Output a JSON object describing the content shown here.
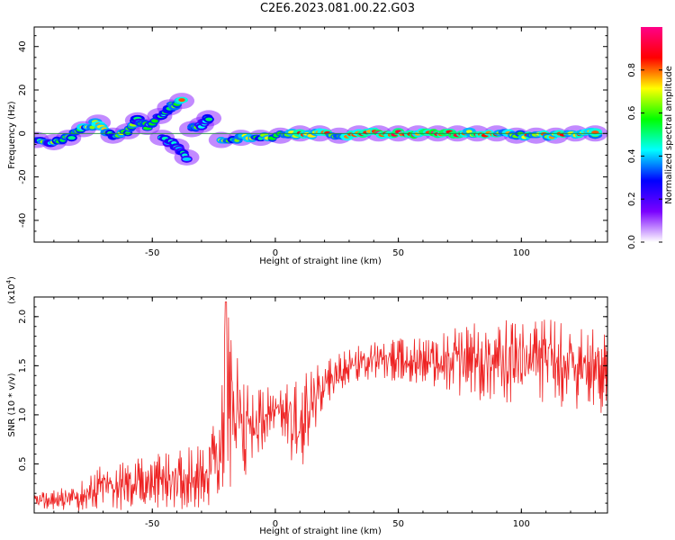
{
  "title": "C2E6.2023.081.00.22.G03",
  "chart_data": [
    {
      "type": "heatmap",
      "xlabel": "Height of straight line (km)",
      "ylabel": "Frequency (Hz)",
      "xlim": [
        -98,
        135
      ],
      "ylim": [
        -50,
        49
      ],
      "xticks": [
        -50,
        0,
        50,
        100
      ],
      "yticks": [
        -40,
        -20,
        0,
        20,
        40
      ],
      "colorbar": {
        "label": "Normalized spectral amplitude",
        "range": [
          0.0,
          1.0
        ],
        "ticks": [
          "0.0",
          "0.2",
          "0.4",
          "0.6",
          "0.8"
        ],
        "colors": [
          "#ffffff",
          "#7a00ff",
          "#0000ff",
          "#00ffff",
          "#00ff00",
          "#ffff00",
          "#ff0000",
          "#ff0088"
        ]
      },
      "ridge": [
        {
          "x": -97,
          "f": -3,
          "a": 0.6
        },
        {
          "x": -90,
          "f": -4,
          "a": 0.55
        },
        {
          "x": -84,
          "f": -2,
          "a": 0.6
        },
        {
          "x": -78,
          "f": 2,
          "a": 0.65
        },
        {
          "x": -72,
          "f": 5,
          "a": 0.7
        },
        {
          "x": -66,
          "f": -1,
          "a": 0.6
        },
        {
          "x": -60,
          "f": 1,
          "a": 0.65
        },
        {
          "x": -56,
          "f": 6,
          "a": 0.5
        },
        {
          "x": -52,
          "f": 3,
          "a": 0.55
        },
        {
          "x": -47,
          "f": 8,
          "a": 0.45
        },
        {
          "x": -43,
          "f": 12,
          "a": 0.5
        },
        {
          "x": -38,
          "f": 15,
          "a": 0.7
        },
        {
          "x": -46,
          "f": -2,
          "a": 0.45
        },
        {
          "x": -40,
          "f": -6,
          "a": 0.5
        },
        {
          "x": -36,
          "f": -11,
          "a": 0.45
        },
        {
          "x": -34,
          "f": 2,
          "a": 0.55
        },
        {
          "x": -30,
          "f": 4,
          "a": 0.5
        },
        {
          "x": -27,
          "f": 7,
          "a": 0.45
        },
        {
          "x": -22,
          "f": -3,
          "a": 0.6
        },
        {
          "x": -14,
          "f": -2,
          "a": 0.65
        },
        {
          "x": -6,
          "f": -2,
          "a": 0.6
        },
        {
          "x": 2,
          "f": -1,
          "a": 0.7
        },
        {
          "x": 10,
          "f": 0,
          "a": 0.8
        },
        {
          "x": 18,
          "f": 0,
          "a": 0.75
        },
        {
          "x": 26,
          "f": -1,
          "a": 0.7
        },
        {
          "x": 34,
          "f": 0,
          "a": 0.85
        },
        {
          "x": 42,
          "f": 0,
          "a": 0.9
        },
        {
          "x": 50,
          "f": 0,
          "a": 0.9
        },
        {
          "x": 58,
          "f": 0,
          "a": 0.85
        },
        {
          "x": 66,
          "f": 0,
          "a": 0.9
        },
        {
          "x": 74,
          "f": 0,
          "a": 0.85
        },
        {
          "x": 82,
          "f": 0,
          "a": 0.8
        },
        {
          "x": 90,
          "f": 0,
          "a": 0.75
        },
        {
          "x": 98,
          "f": -1,
          "a": 0.7
        },
        {
          "x": 106,
          "f": -1,
          "a": 0.75
        },
        {
          "x": 114,
          "f": -1,
          "a": 0.7
        },
        {
          "x": 122,
          "f": 0,
          "a": 0.8
        },
        {
          "x": 130,
          "f": 0,
          "a": 0.75
        }
      ]
    },
    {
      "type": "line",
      "xlabel": "Height of straight line (km)",
      "ylabel": "SNR (10 * v/v)",
      "y_multiplier": "(x10",
      "y_multiplier_exp": "4",
      "xlim": [
        -98,
        135
      ],
      "ylim": [
        0,
        2.2
      ],
      "xticks": [
        -50,
        0,
        50,
        100
      ],
      "yticks": [
        0.5,
        1.0,
        1.5,
        2.0
      ],
      "ytick_labels": [
        "0.5",
        "1.0",
        "1.5",
        "2.0"
      ],
      "color": "#ee2222",
      "envelope": [
        {
          "x": -98,
          "lo": 0.02,
          "hi": 0.2
        },
        {
          "x": -80,
          "lo": 0.02,
          "hi": 0.3
        },
        {
          "x": -72,
          "lo": 0.02,
          "hi": 0.5
        },
        {
          "x": -50,
          "lo": 0.03,
          "hi": 0.6
        },
        {
          "x": -30,
          "lo": 0.03,
          "hi": 0.7
        },
        {
          "x": -22,
          "lo": 0.05,
          "hi": 1.3
        },
        {
          "x": -20,
          "lo": 0.1,
          "hi": 2.15
        },
        {
          "x": -12,
          "lo": 0.3,
          "hi": 1.3
        },
        {
          "x": 0,
          "lo": 0.8,
          "hi": 1.3
        },
        {
          "x": 10,
          "lo": 0.4,
          "hi": 1.45
        },
        {
          "x": 20,
          "lo": 1.1,
          "hi": 1.55
        },
        {
          "x": 35,
          "lo": 1.35,
          "hi": 1.75
        },
        {
          "x": 60,
          "lo": 1.3,
          "hi": 1.8
        },
        {
          "x": 80,
          "lo": 1.15,
          "hi": 1.95
        },
        {
          "x": 110,
          "lo": 1.1,
          "hi": 2.0
        },
        {
          "x": 135,
          "lo": 1.0,
          "hi": 1.85
        }
      ]
    }
  ]
}
